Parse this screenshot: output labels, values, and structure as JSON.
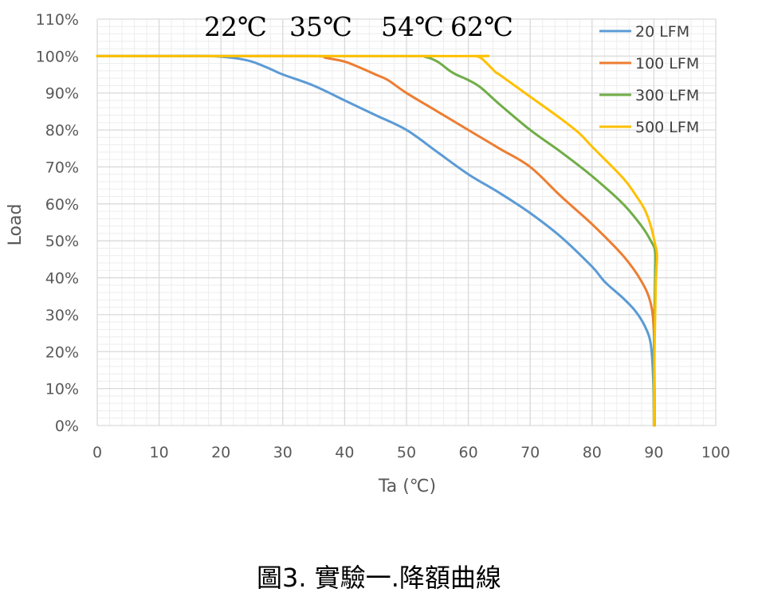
{
  "caption": "圖3. 實驗一.降額曲線",
  "chart_data": {
    "type": "line",
    "xlabel": "Ta (℃)",
    "ylabel": "Load",
    "xlim": [
      0,
      100
    ],
    "ylim": [
      0,
      110
    ],
    "x_ticks": [
      "0",
      "10",
      "20",
      "30",
      "40",
      "50",
      "60",
      "70",
      "80",
      "90",
      "100"
    ],
    "y_ticks": [
      "0%",
      "10%",
      "20%",
      "30%",
      "40%",
      "50%",
      "60%",
      "70%",
      "80%",
      "90%",
      "100%",
      "110%"
    ],
    "grid": true,
    "legend_position": "top-right",
    "annotations": [
      "22℃",
      "35℃",
      "54℃",
      "62℃"
    ],
    "series": [
      {
        "name": "20 LFM",
        "color": "#5B9BD5",
        "points": [
          [
            0,
            100
          ],
          [
            10,
            100
          ],
          [
            18,
            100
          ],
          [
            22,
            99.5
          ],
          [
            25,
            98.5
          ],
          [
            28,
            96.5
          ],
          [
            30,
            95
          ],
          [
            35,
            92
          ],
          [
            40,
            88
          ],
          [
            45,
            84
          ],
          [
            50,
            80
          ],
          [
            55,
            74
          ],
          [
            60,
            68
          ],
          [
            65,
            63
          ],
          [
            70,
            57.5
          ],
          [
            75,
            51
          ],
          [
            80,
            43
          ],
          [
            82,
            39
          ],
          [
            85,
            34.5
          ],
          [
            87,
            31
          ],
          [
            88.5,
            27
          ],
          [
            89.5,
            22
          ],
          [
            89.9,
            12
          ],
          [
            90,
            0
          ]
        ]
      },
      {
        "name": "100 LFM",
        "color": "#ED7D31",
        "points": [
          [
            0,
            100
          ],
          [
            20,
            100
          ],
          [
            35,
            100
          ],
          [
            37,
            99.5
          ],
          [
            40,
            98.5
          ],
          [
            43,
            96.5
          ],
          [
            45,
            95
          ],
          [
            47,
            93.5
          ],
          [
            50,
            90
          ],
          [
            55,
            85
          ],
          [
            60,
            80
          ],
          [
            65,
            75
          ],
          [
            70,
            70
          ],
          [
            75,
            62
          ],
          [
            80,
            54.5
          ],
          [
            85,
            46
          ],
          [
            88,
            39
          ],
          [
            89.5,
            33
          ],
          [
            90,
            25
          ],
          [
            90.1,
            10
          ],
          [
            90.1,
            0
          ]
        ]
      },
      {
        "name": "300 LFM",
        "color": "#70AD47",
        "points": [
          [
            0,
            100
          ],
          [
            50,
            100
          ],
          [
            53,
            99.8
          ],
          [
            55,
            98.5
          ],
          [
            57,
            96
          ],
          [
            58,
            95
          ],
          [
            60,
            93.5
          ],
          [
            62,
            91.5
          ],
          [
            65,
            87
          ],
          [
            70,
            80
          ],
          [
            75,
            74
          ],
          [
            80,
            67.5
          ],
          [
            85,
            60
          ],
          [
            88,
            54
          ],
          [
            89.5,
            50
          ],
          [
            90.2,
            47
          ],
          [
            90.2,
            40
          ],
          [
            90,
            20
          ],
          [
            90,
            0
          ]
        ]
      },
      {
        "name": "500 LFM",
        "color": "#FFC000",
        "points": [
          [
            0,
            100
          ],
          [
            58,
            100
          ],
          [
            61,
            100
          ],
          [
            62,
            99.5
          ],
          [
            63,
            98
          ],
          [
            64.5,
            95.5
          ],
          [
            65,
            95
          ],
          [
            70,
            89
          ],
          [
            75,
            83
          ],
          [
            78,
            79
          ],
          [
            80,
            75.5
          ],
          [
            85,
            67
          ],
          [
            87,
            62.5
          ],
          [
            88.5,
            58.5
          ],
          [
            89.5,
            54
          ],
          [
            90.2,
            49
          ],
          [
            90.5,
            46
          ],
          [
            90.3,
            38
          ],
          [
            90.1,
            20
          ],
          [
            90,
            0
          ]
        ]
      }
    ]
  }
}
